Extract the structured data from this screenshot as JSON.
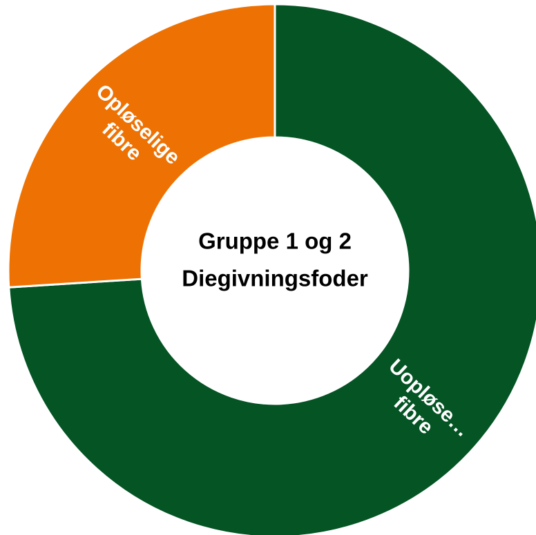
{
  "chart_data": {
    "type": "pie",
    "title": "Gruppe 1 og 2",
    "subtitle": "Diegivningsfoder",
    "categories": [
      "Uopløse… fibre",
      "Opløselige fibre"
    ],
    "values": [
      74,
      26
    ],
    "colors": [
      "#045424",
      "#ee7203"
    ],
    "donut": true
  }
}
